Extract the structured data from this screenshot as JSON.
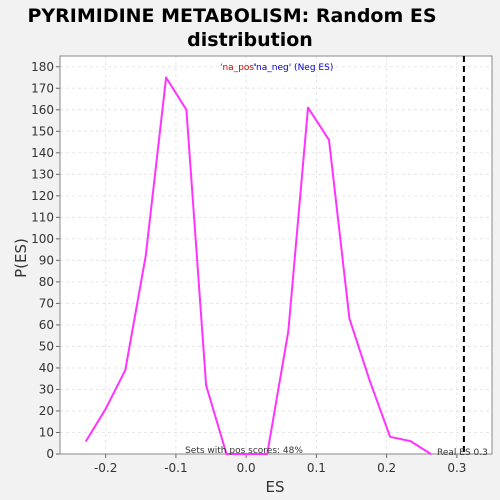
{
  "chart_data": {
    "type": "line",
    "title_line1": "PYRIMIDINE METABOLISM: Random ES",
    "title_line2": "distribution",
    "xlabel": "ES",
    "ylabel": "P(ES)",
    "xlim": [
      -0.265,
      0.35
    ],
    "ylim": [
      0,
      185
    ],
    "x_ticks": [
      "-0.2",
      "-0.1",
      "0.0",
      "0.1",
      "0.2",
      "0.3"
    ],
    "y_ticks": [
      "0",
      "10",
      "20",
      "30",
      "40",
      "50",
      "60",
      "70",
      "80",
      "90",
      "100",
      "110",
      "120",
      "130",
      "140",
      "150",
      "160",
      "170",
      "180"
    ],
    "grid": true,
    "series": [
      {
        "color": "#ff33ff",
        "x": [
          -0.228,
          -0.2,
          -0.172,
          -0.143,
          -0.114,
          -0.085,
          -0.057,
          -0.028,
          0.0,
          0.03,
          0.06,
          0.088,
          0.118,
          0.147,
          0.176,
          0.205,
          0.234,
          0.263
        ],
        "y": [
          6,
          21,
          39,
          92,
          175,
          160,
          32,
          0,
          0,
          0,
          57,
          161,
          146,
          63,
          34,
          8,
          6,
          0
        ]
      }
    ],
    "real_es": {
      "value": 0.31,
      "label": "Real ES 0.3",
      "color": "#000000"
    },
    "legend": {
      "pos_label": "'na_pos'",
      "neg_label": "'na_neg' (Neg ES)",
      "pos_color": "#cc0000",
      "neg_color": "#0000cc"
    },
    "annotation": "Sets with pos scores: 48%",
    "colors": {
      "background": "#f2f2f2",
      "plot_bg": "#ffffff",
      "grid": "#e6e6e6"
    }
  }
}
